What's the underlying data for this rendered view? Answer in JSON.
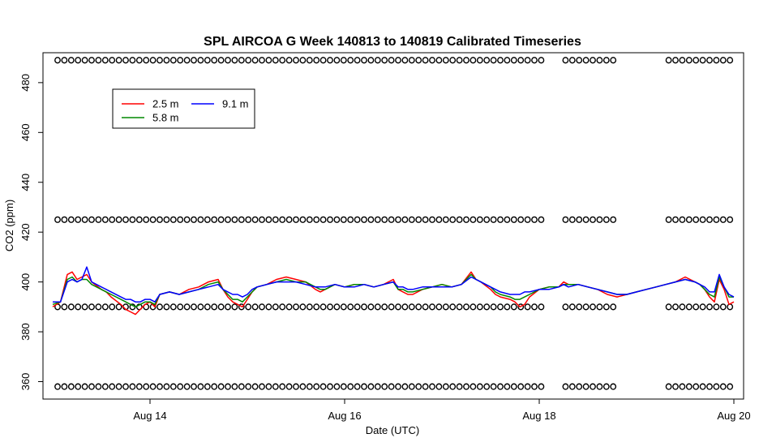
{
  "chart_data": {
    "type": "line",
    "title": "SPL AIRCOA G  Week 140813 to 140819  Calibrated Timeseries",
    "xlabel": "Date (UTC)",
    "ylabel": "CO2 (ppm)",
    "x_unit": "days (Aug 2014)",
    "xlim": [
      12.9,
      20.1
    ],
    "ylim": [
      353,
      492
    ],
    "x_ticks": [
      14,
      16,
      18,
      20
    ],
    "x_tick_labels": [
      "Aug 14",
      "Aug 16",
      "Aug 18",
      "Aug 20"
    ],
    "y_ticks": [
      360,
      380,
      400,
      420,
      440,
      460,
      480
    ],
    "y_tick_labels": [
      "360",
      "380",
      "400",
      "420",
      "440",
      "460",
      "480"
    ],
    "legend": {
      "position": "top-left",
      "entries": [
        {
          "label": "2.5 m",
          "color": "#ff0000"
        },
        {
          "label": "5.8 m",
          "color": "#008800"
        },
        {
          "label": "9.1 m",
          "color": "#0000ff"
        }
      ]
    },
    "series": [
      {
        "name": "2.5 m",
        "color": "#ff0000",
        "x": [
          13.0,
          13.08,
          13.15,
          13.2,
          13.25,
          13.3,
          13.35,
          13.4,
          13.5,
          13.55,
          13.6,
          13.7,
          13.75,
          13.8,
          13.85,
          13.9,
          13.95,
          14.0,
          14.05,
          14.1,
          14.2,
          14.3,
          14.4,
          14.5,
          14.6,
          14.7,
          14.75,
          14.8,
          14.85,
          14.9,
          14.95,
          15.0,
          15.05,
          15.1,
          15.2,
          15.3,
          15.4,
          15.5,
          15.6,
          15.7,
          15.75,
          15.8,
          15.9,
          16.0,
          16.1,
          16.2,
          16.3,
          16.4,
          16.5,
          16.55,
          16.6,
          16.65,
          16.7,
          16.8,
          16.9,
          17.0,
          17.1,
          17.2,
          17.3,
          17.35,
          17.4,
          17.5,
          17.55,
          17.6,
          17.7,
          17.75,
          17.8,
          17.85,
          17.9,
          18.0,
          18.1,
          18.2,
          18.25,
          18.3,
          18.4,
          18.5,
          18.6,
          18.7,
          18.8,
          18.9,
          19.0,
          19.1,
          19.2,
          19.3,
          19.4,
          19.5,
          19.6,
          19.65,
          19.7,
          19.75,
          19.8,
          19.85,
          19.9,
          19.95,
          20.0
        ],
        "y": [
          390,
          392,
          403,
          404,
          401,
          402,
          403,
          400,
          397,
          396,
          394,
          391,
          389,
          388,
          387,
          389,
          391,
          392,
          390,
          395,
          396,
          395,
          397,
          398,
          400,
          401,
          397,
          394,
          392,
          391,
          390,
          393,
          396,
          398,
          399,
          401,
          402,
          401,
          400,
          397,
          396,
          397,
          399,
          398,
          399,
          399,
          398,
          399,
          401,
          397,
          396,
          395,
          395,
          397,
          398,
          399,
          398,
          399,
          404,
          401,
          400,
          397,
          395,
          394,
          393,
          392,
          390,
          391,
          394,
          397,
          398,
          398,
          400,
          399,
          399,
          398,
          397,
          395,
          394,
          395,
          396,
          397,
          398,
          399,
          400,
          402,
          400,
          399,
          397,
          394,
          392,
          401,
          397,
          391,
          392
        ]
      },
      {
        "name": "5.8 m",
        "color": "#008800",
        "x": [
          13.0,
          13.08,
          13.15,
          13.2,
          13.25,
          13.3,
          13.35,
          13.4,
          13.5,
          13.55,
          13.6,
          13.7,
          13.75,
          13.8,
          13.85,
          13.9,
          13.95,
          14.0,
          14.05,
          14.1,
          14.2,
          14.3,
          14.4,
          14.5,
          14.6,
          14.7,
          14.75,
          14.8,
          14.85,
          14.9,
          14.95,
          15.0,
          15.05,
          15.1,
          15.2,
          15.3,
          15.4,
          15.5,
          15.6,
          15.7,
          15.75,
          15.8,
          15.9,
          16.0,
          16.1,
          16.2,
          16.3,
          16.4,
          16.5,
          16.55,
          16.6,
          16.65,
          16.7,
          16.8,
          16.9,
          17.0,
          17.1,
          17.2,
          17.3,
          17.35,
          17.4,
          17.5,
          17.55,
          17.6,
          17.7,
          17.75,
          17.8,
          17.85,
          17.9,
          18.0,
          18.1,
          18.2,
          18.25,
          18.3,
          18.4,
          18.5,
          18.6,
          18.7,
          18.8,
          18.9,
          19.0,
          19.1,
          19.2,
          19.3,
          19.4,
          19.5,
          19.6,
          19.65,
          19.7,
          19.75,
          19.8,
          19.85,
          19.9,
          19.95,
          20.0
        ],
        "y": [
          391,
          392,
          401,
          402,
          400,
          401,
          401,
          399,
          397,
          396,
          395,
          393,
          392,
          391,
          390,
          391,
          392,
          392,
          391,
          395,
          396,
          395,
          396,
          397,
          399,
          400,
          397,
          395,
          393,
          393,
          392,
          394,
          396,
          398,
          399,
          400,
          401,
          400,
          400,
          398,
          397,
          397,
          399,
          398,
          399,
          399,
          398,
          399,
          400,
          397,
          397,
          396,
          396,
          397,
          398,
          399,
          398,
          399,
          403,
          401,
          400,
          398,
          396,
          395,
          394,
          393,
          393,
          394,
          395,
          397,
          398,
          398,
          399,
          399,
          399,
          398,
          397,
          396,
          395,
          395,
          396,
          397,
          398,
          399,
          400,
          401,
          400,
          399,
          397,
          395,
          394,
          402,
          398,
          394,
          394
        ]
      },
      {
        "name": "9.1 m",
        "color": "#0000ff",
        "x": [
          13.0,
          13.08,
          13.15,
          13.2,
          13.25,
          13.3,
          13.35,
          13.4,
          13.5,
          13.55,
          13.6,
          13.7,
          13.75,
          13.8,
          13.85,
          13.9,
          13.95,
          14.0,
          14.05,
          14.1,
          14.2,
          14.3,
          14.4,
          14.5,
          14.6,
          14.7,
          14.75,
          14.8,
          14.85,
          14.9,
          14.95,
          15.0,
          15.05,
          15.1,
          15.2,
          15.3,
          15.4,
          15.5,
          15.6,
          15.7,
          15.75,
          15.8,
          15.9,
          16.0,
          16.1,
          16.2,
          16.3,
          16.4,
          16.5,
          16.55,
          16.6,
          16.65,
          16.7,
          16.8,
          16.9,
          17.0,
          17.1,
          17.2,
          17.3,
          17.35,
          17.4,
          17.5,
          17.55,
          17.6,
          17.7,
          17.75,
          17.8,
          17.85,
          17.9,
          18.0,
          18.1,
          18.2,
          18.25,
          18.3,
          18.4,
          18.5,
          18.6,
          18.7,
          18.8,
          18.9,
          19.0,
          19.1,
          19.2,
          19.3,
          19.4,
          19.5,
          19.6,
          19.65,
          19.7,
          19.75,
          19.8,
          19.85,
          19.9,
          19.95,
          20.0
        ],
        "y": [
          392,
          392,
          400,
          401,
          400,
          401,
          406,
          400,
          398,
          397,
          396,
          394,
          393,
          393,
          392,
          392,
          393,
          393,
          392,
          395,
          396,
          395,
          396,
          397,
          398,
          399,
          397,
          396,
          395,
          395,
          394,
          395,
          397,
          398,
          399,
          400,
          400,
          400,
          399,
          398,
          398,
          398,
          399,
          398,
          398,
          399,
          398,
          399,
          400,
          398,
          398,
          397,
          397,
          398,
          398,
          398,
          398,
          399,
          402,
          401,
          400,
          398,
          397,
          396,
          395,
          395,
          395,
          396,
          396,
          397,
          397,
          398,
          399,
          398,
          399,
          398,
          397,
          396,
          395,
          395,
          396,
          397,
          398,
          399,
          400,
          401,
          400,
          399,
          398,
          396,
          396,
          403,
          398,
          395,
          394
        ]
      }
    ],
    "markers": {
      "symbol": "o",
      "color": "#000000",
      "levels": [
        358,
        390,
        425,
        489
      ],
      "time_segments": [
        [
          13.05,
          18.02
        ],
        [
          18.27,
          18.77
        ],
        [
          19.33,
          20.0
        ]
      ],
      "spacing_days": 0.07
    }
  }
}
